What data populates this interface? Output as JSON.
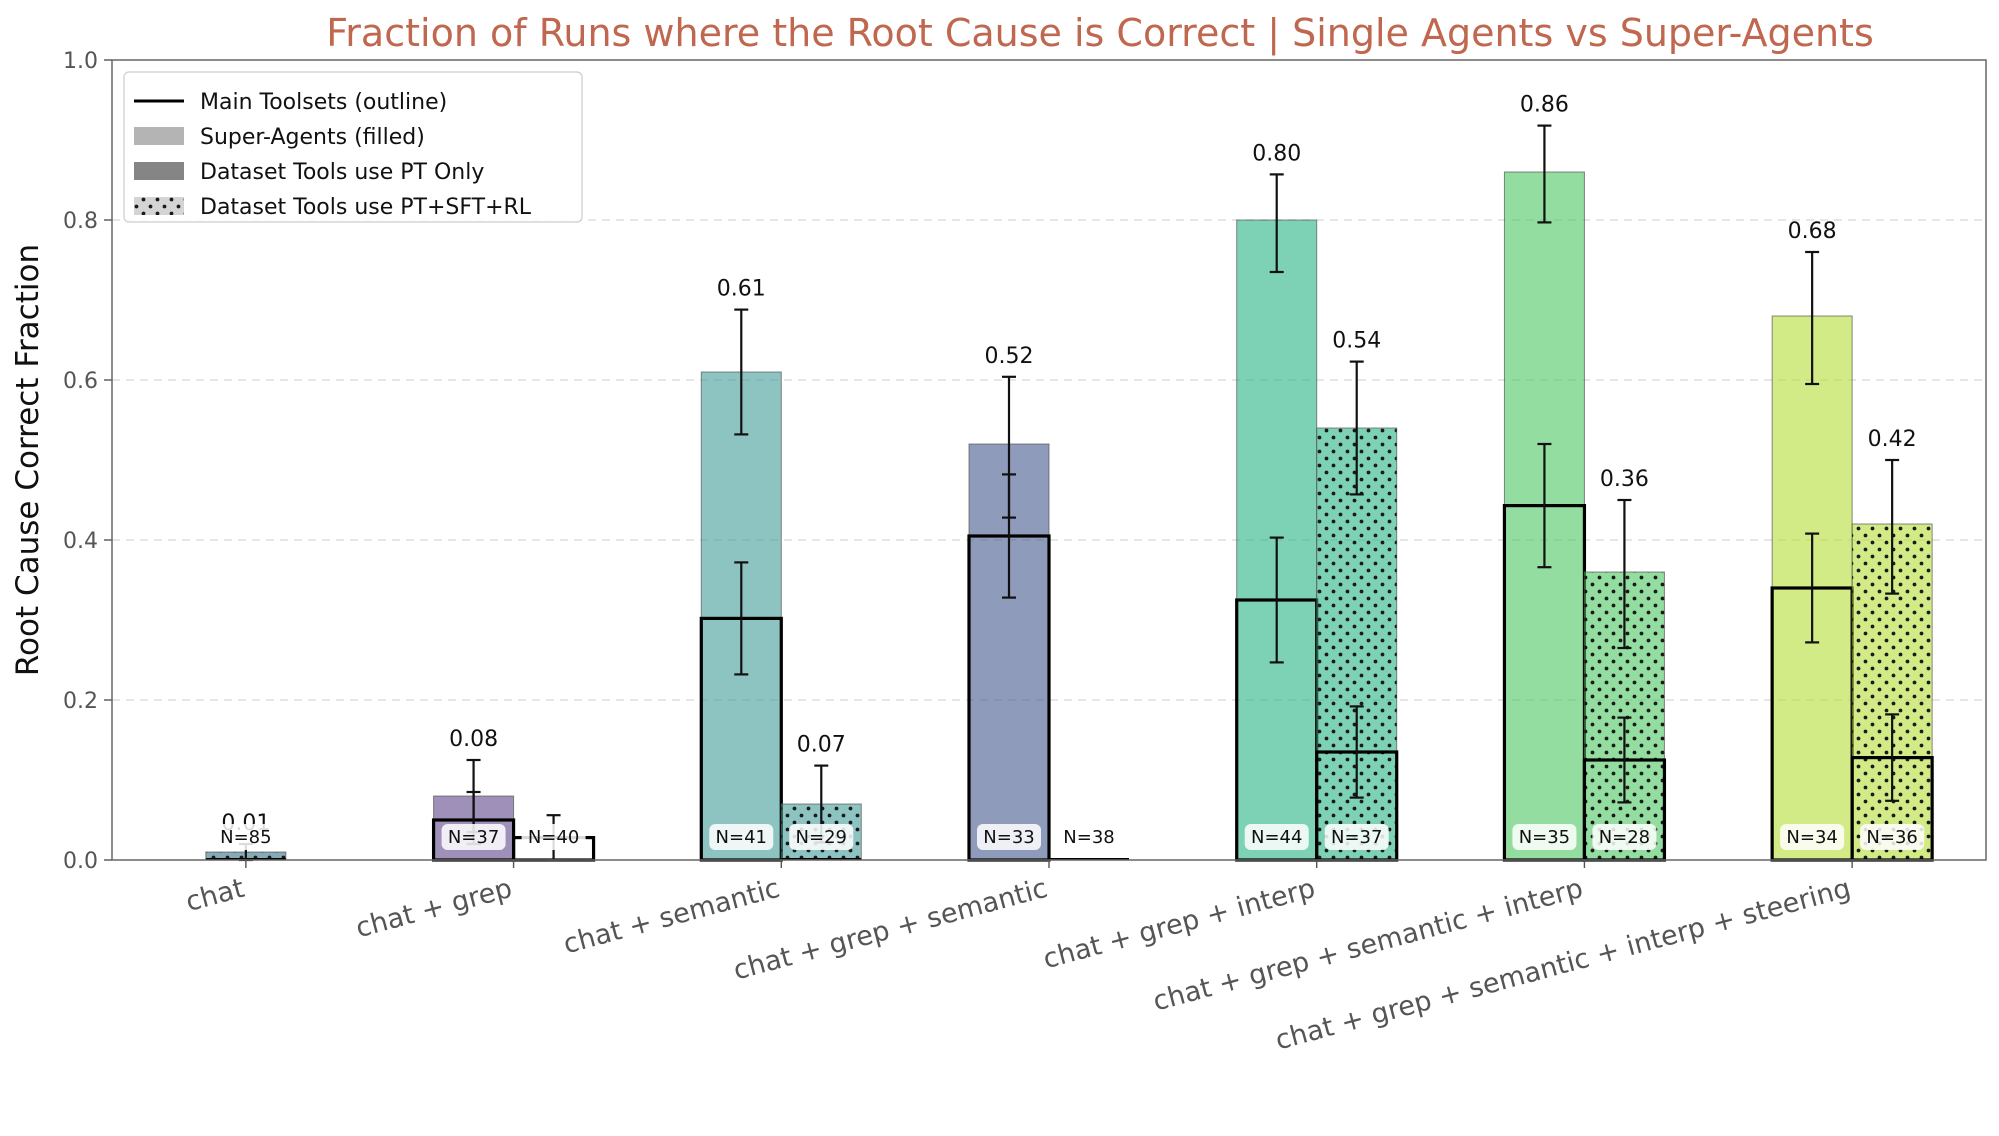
{
  "chart_data": {
    "type": "bar",
    "title": "Fraction of Runs where the Root Cause is Correct | Single Agents vs Super-Agents",
    "xlabel": "",
    "ylabel": "Root Cause Correct Fraction",
    "ylim": [
      0,
      1.0
    ],
    "yticks": [
      "0.0",
      "0.2",
      "0.4",
      "0.6",
      "0.8",
      "1.0"
    ],
    "grid": "horizontal dashed",
    "legend_position": "top-left",
    "legend": [
      {
        "label": "Main Toolsets (outline)",
        "swatch": "line"
      },
      {
        "label": "Super-Agents (filled)",
        "swatch": "light"
      },
      {
        "label": "Dataset Tools use PT Only",
        "swatch": "dark"
      },
      {
        "label": "Dataset Tools use PT+SFT+RL",
        "swatch": "dotted"
      }
    ],
    "colors": {
      "chat": "#2d6f83",
      "chat + grep": "#5a3f88",
      "chat + semantic": "#3a9a94",
      "chat + grep + semantic": "#3e5288",
      "chat + grep + interp": "#1fb27f",
      "chat + grep + semantic + interp": "#43c55a",
      "chat + grep + semantic + interp + steering": "#b3dd2e"
    },
    "categories": [
      "chat",
      "chat + grep",
      "chat + semantic",
      "chat + grep + semantic",
      "chat + grep + interp",
      "chat + grep + semantic + interp",
      "chat + grep + semantic + interp + steering"
    ],
    "groups": [
      {
        "category": "chat",
        "pt_only": null,
        "pt_sft_rl": {
          "super_value": 0.01,
          "super_label": "0.01",
          "super_err": [
            0.0,
            0.02
          ],
          "main_value": 0.0,
          "main_err": null,
          "n": "N=85"
        }
      },
      {
        "category": "chat + grep",
        "pt_only": {
          "super_value": 0.08,
          "super_label": "0.08",
          "super_err": [
            0.035,
            0.125
          ],
          "main_value": 0.05,
          "main_err": [
            0.02,
            0.085
          ],
          "n": "N=37"
        },
        "pt_sft_rl": {
          "super_value": 0.0,
          "super_label": "",
          "super_err": null,
          "main_value": 0.028,
          "main_err": [
            0.0,
            0.056
          ],
          "n": "N=40"
        }
      },
      {
        "category": "chat + semantic",
        "pt_only": {
          "super_value": 0.61,
          "super_label": "0.61",
          "super_err": [
            0.532,
            0.688
          ],
          "main_value": 0.302,
          "main_err": [
            0.232,
            0.372
          ],
          "n": "N=41"
        },
        "pt_sft_rl": {
          "super_value": 0.07,
          "super_label": "0.07",
          "super_err": [
            0.022,
            0.118
          ],
          "main_value": 0.0,
          "main_err": null,
          "n": "N=29"
        }
      },
      {
        "category": "chat + grep + semantic",
        "pt_only": {
          "super_value": 0.52,
          "super_label": "0.52",
          "super_err": [
            0.428,
            0.604
          ],
          "main_value": 0.405,
          "main_err": [
            0.328,
            0.482
          ],
          "n": "N=33"
        },
        "pt_sft_rl": {
          "super_value": 0.0,
          "super_label": "",
          "super_err": null,
          "main_value": 0.0,
          "main_err": null,
          "n": "N=38"
        }
      },
      {
        "category": "chat + grep + interp",
        "pt_only": {
          "super_value": 0.8,
          "super_label": "0.80",
          "super_err": [
            0.735,
            0.857
          ],
          "main_value": 0.325,
          "main_err": [
            0.247,
            0.403
          ],
          "n": "N=44"
        },
        "pt_sft_rl": {
          "super_value": 0.54,
          "super_label": "0.54",
          "super_err": [
            0.457,
            0.623
          ],
          "main_value": 0.135,
          "main_err": [
            0.078,
            0.192
          ],
          "n": "N=37"
        }
      },
      {
        "category": "chat + grep + semantic + interp",
        "pt_only": {
          "super_value": 0.86,
          "super_label": "0.86",
          "super_err": [
            0.797,
            0.918
          ],
          "main_value": 0.443,
          "main_err": [
            0.366,
            0.52
          ],
          "n": "N=35"
        },
        "pt_sft_rl": {
          "super_value": 0.36,
          "super_label": "0.36",
          "super_err": [
            0.265,
            0.45
          ],
          "main_value": 0.125,
          "main_err": [
            0.072,
            0.178
          ],
          "n": "N=28"
        }
      },
      {
        "category": "chat + grep + semantic + interp + steering",
        "pt_only": {
          "super_value": 0.68,
          "super_label": "0.68",
          "super_err": [
            0.595,
            0.76
          ],
          "main_value": 0.34,
          "main_err": [
            0.272,
            0.408
          ],
          "n": "N=34"
        },
        "pt_sft_rl": {
          "super_value": 0.42,
          "super_label": "0.42",
          "super_err": [
            0.333,
            0.5
          ],
          "main_value": 0.128,
          "main_err": [
            0.074,
            0.182
          ],
          "n": "N=36"
        }
      }
    ]
  }
}
